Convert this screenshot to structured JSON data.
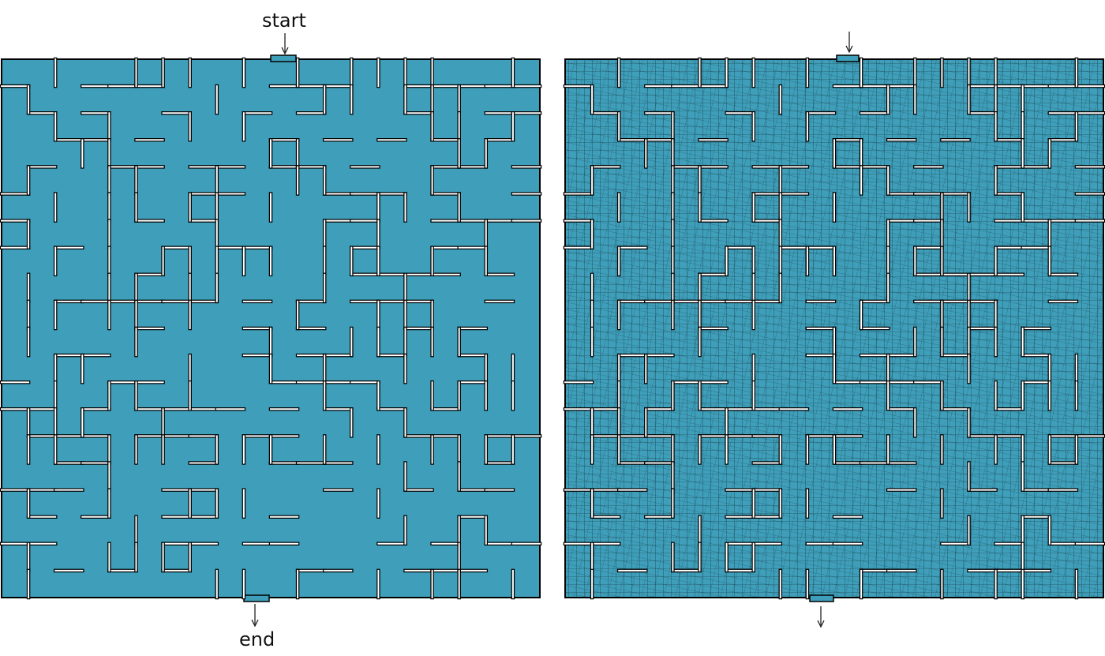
{
  "labels": {
    "start": "start",
    "end": "end"
  },
  "colors": {
    "maze_fill": "#3f9fba",
    "wall": "#000000",
    "mesh_line": "#0b1f26",
    "background": "#ffffff"
  },
  "mazes": [
    {
      "id": "left",
      "style": "flat"
    },
    {
      "id": "right",
      "style": "meshed"
    }
  ],
  "grid": {
    "rows": 20,
    "cols": 20
  }
}
